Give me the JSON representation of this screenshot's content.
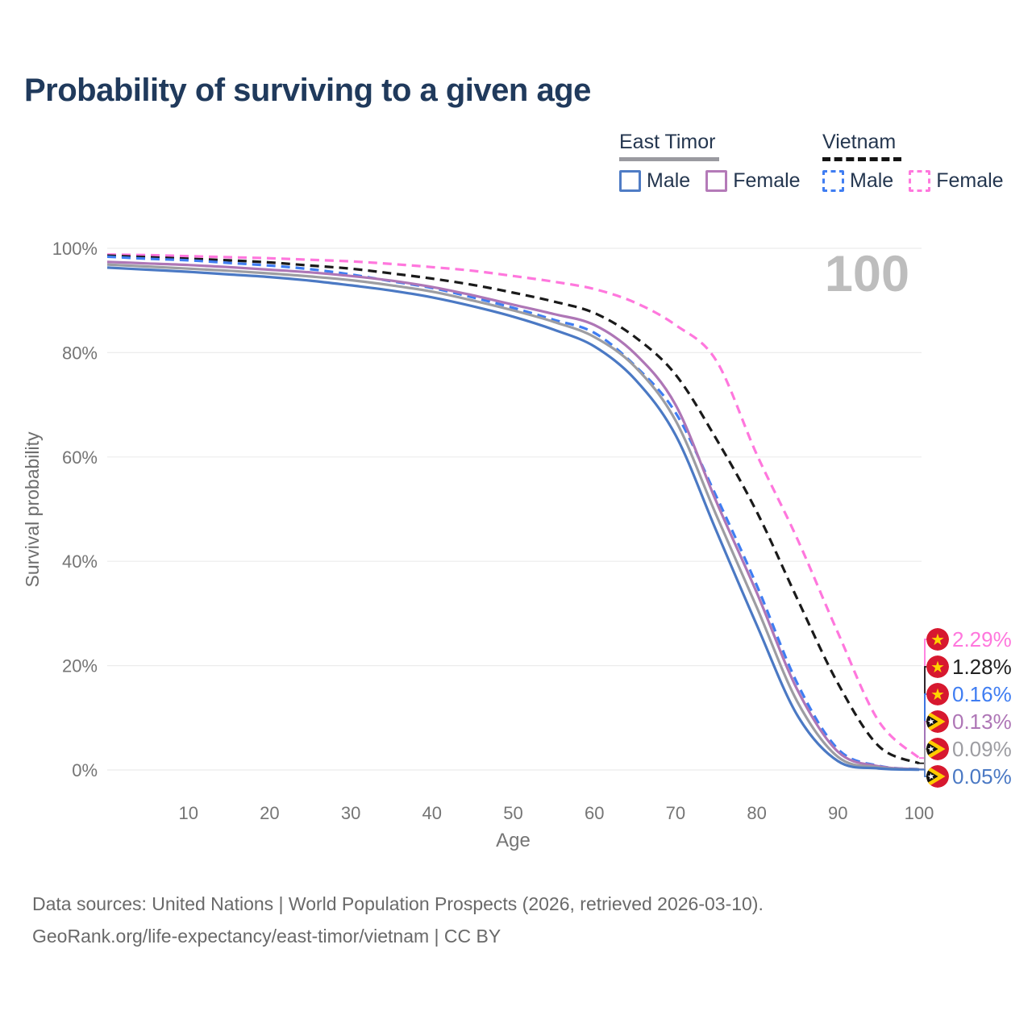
{
  "legend": {
    "groups": [
      {
        "country": "East Timor",
        "underline_style": "solid",
        "underline_color": "#9a9aa0",
        "items": [
          {
            "label": "Male",
            "color": "#4f7cc5",
            "style": "solid"
          },
          {
            "label": "Female",
            "color": "#b47ab8",
            "style": "solid"
          }
        ]
      },
      {
        "country": "Vietnam",
        "underline_style": "dashed",
        "underline_color": "#141414",
        "items": [
          {
            "label": "Male",
            "color": "#3f7df2",
            "style": "dashed"
          },
          {
            "label": "Female",
            "color": "#ff77dd",
            "style": "dashed"
          }
        ]
      }
    ]
  },
  "footer": {
    "line1": "Data sources: United Nations | World Population Prospects (2026, retrieved 2026-03-10).",
    "line2": "GeoRank.org/life-expectancy/east-timor/vietnam | CC BY"
  },
  "chart_data": {
    "type": "line",
    "title": "Probability of surviving to a given age",
    "xlabel": "Age",
    "ylabel": "Survival probability",
    "xlim": [
      0,
      100
    ],
    "ylim": [
      0,
      100
    ],
    "x_ticks": [
      10,
      20,
      30,
      40,
      50,
      60,
      70,
      80,
      90,
      100
    ],
    "y_tick_labels": [
      "0%",
      "20%",
      "40%",
      "60%",
      "80%",
      "100%"
    ],
    "grid": "horizontal",
    "legend_position": "top-right",
    "watermark": "100",
    "ages": [
      0,
      5,
      10,
      15,
      20,
      25,
      30,
      35,
      40,
      45,
      50,
      55,
      60,
      65,
      70,
      75,
      80,
      85,
      90,
      95,
      100
    ],
    "series": [
      {
        "name": "Vietnam Female",
        "country": "Vietnam",
        "sex": "Female",
        "line_style": "dashed",
        "color": "#ff77dd",
        "flag": "vn",
        "end_label": "2.29%",
        "values": [
          98.8,
          98.7,
          98.5,
          98.3,
          98.1,
          97.8,
          97.5,
          97.0,
          96.4,
          95.7,
          94.7,
          93.6,
          92.2,
          89.6,
          85.3,
          78.5,
          60.5,
          44.3,
          26.3,
          9.4,
          2.29
        ]
      },
      {
        "name": "Vietnam Both sexes",
        "country": "Vietnam",
        "sex": "Both sexes",
        "line_style": "dashed",
        "color": "#1a1a1a",
        "flag": "vn",
        "end_label": "1.28%",
        "values": [
          98.6,
          98.3,
          98.0,
          97.7,
          97.3,
          96.7,
          96.1,
          95.2,
          94.2,
          93.0,
          91.5,
          89.8,
          87.6,
          83.0,
          75.8,
          63.5,
          49.5,
          32.8,
          16.6,
          4.6,
          1.28
        ]
      },
      {
        "name": "Vietnam Male",
        "country": "Vietnam",
        "sex": "Male",
        "line_style": "dashed",
        "color": "#3f7df2",
        "flag": "vn",
        "end_label": "0.16%",
        "values": [
          98.4,
          98.0,
          97.7,
          97.2,
          96.7,
          96.0,
          95.0,
          93.7,
          92.4,
          90.6,
          88.6,
          86.3,
          83.8,
          77.5,
          68.5,
          52.5,
          35.4,
          16.6,
          4.0,
          0.8,
          0.16
        ]
      },
      {
        "name": "East Timor Female",
        "country": "East Timor",
        "sex": "Female",
        "line_style": "solid",
        "color": "#ae76b6",
        "flag": "tl",
        "end_label": "0.13%",
        "values": [
          97.4,
          97.1,
          96.8,
          96.4,
          95.9,
          95.4,
          94.7,
          93.8,
          92.6,
          91.0,
          89.2,
          87.4,
          85.3,
          79.8,
          70.0,
          51.5,
          34.0,
          15.4,
          3.5,
          0.7,
          0.13
        ]
      },
      {
        "name": "East Timor Both sexes",
        "country": "East Timor",
        "sex": "Both sexes",
        "line_style": "solid",
        "color": "#9d9da2",
        "flag": "tl",
        "end_label": "0.09%",
        "values": [
          96.9,
          96.5,
          96.1,
          95.7,
          95.2,
          94.6,
          93.9,
          92.9,
          91.7,
          90.0,
          88.1,
          85.9,
          83.0,
          77.3,
          67.0,
          48.9,
          31.2,
          13.1,
          2.5,
          0.5,
          0.09
        ]
      },
      {
        "name": "East Timor Male",
        "country": "East Timor",
        "sex": "Male",
        "line_style": "solid",
        "color": "#4b79c4",
        "flag": "tl",
        "end_label": "0.05%",
        "values": [
          96.3,
          95.9,
          95.5,
          95.0,
          94.5,
          93.8,
          92.9,
          91.9,
          90.6,
          88.9,
          86.9,
          84.4,
          81.2,
          74.9,
          64.2,
          45.9,
          27.8,
          10.5,
          1.7,
          0.3,
          0.05
        ]
      }
    ]
  }
}
